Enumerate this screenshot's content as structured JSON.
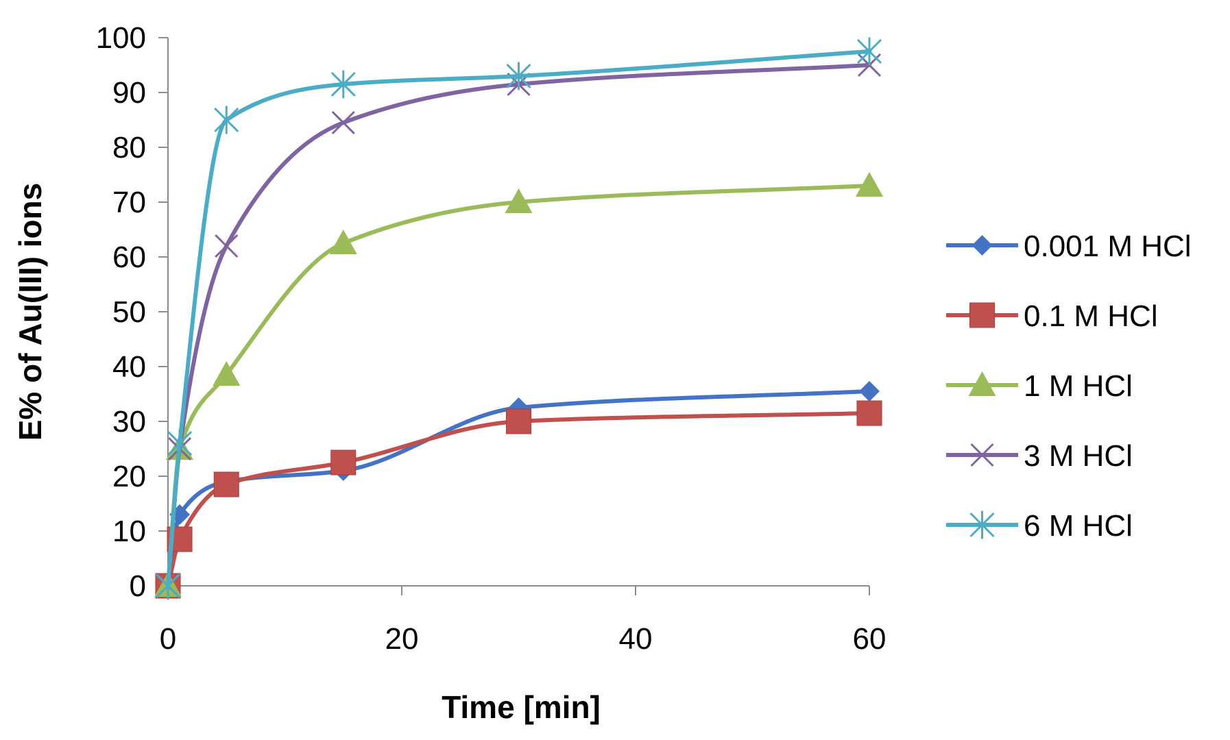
{
  "chart_data": {
    "type": "line",
    "title": "",
    "xlabel": "Time [min]",
    "ylabel": "E% of Au(III) ions",
    "xlim": [
      0,
      60
    ],
    "ylim": [
      0,
      100
    ],
    "x_ticks": [
      0,
      20,
      40,
      60
    ],
    "y_ticks": [
      0,
      10,
      20,
      30,
      40,
      50,
      60,
      70,
      80,
      90,
      100
    ],
    "grid": false,
    "smooth": true,
    "legend_position": "right",
    "series": [
      {
        "name": "0.001 M HCl",
        "color": "#4472C4",
        "marker": "diamond",
        "points": [
          [
            0,
            0
          ],
          [
            1,
            13
          ],
          [
            5,
            19
          ],
          [
            15,
            21
          ],
          [
            30,
            32.5
          ],
          [
            60,
            35.5
          ]
        ]
      },
      {
        "name": "0.1 M HCl",
        "color": "#C0504D",
        "marker": "square",
        "points": [
          [
            0,
            0
          ],
          [
            1,
            8.5
          ],
          [
            5,
            18.5
          ],
          [
            15,
            22.5
          ],
          [
            30,
            30
          ],
          [
            60,
            31.5
          ]
        ]
      },
      {
        "name": "1 M HCl",
        "color": "#9BBB59",
        "marker": "triangle",
        "points": [
          [
            0,
            0
          ],
          [
            1,
            25
          ],
          [
            5,
            38.5
          ],
          [
            15,
            62.5
          ],
          [
            30,
            70
          ],
          [
            60,
            73
          ]
        ]
      },
      {
        "name": "3 M HCl",
        "color": "#8064A2",
        "marker": "x",
        "points": [
          [
            0,
            0
          ],
          [
            1,
            25
          ],
          [
            5,
            62
          ],
          [
            15,
            84.5
          ],
          [
            30,
            91.5
          ],
          [
            60,
            95
          ]
        ]
      },
      {
        "name": "6 M HCl",
        "color": "#4BACC6",
        "marker": "star",
        "points": [
          [
            0,
            0
          ],
          [
            1,
            26
          ],
          [
            5,
            85
          ],
          [
            15,
            91.5
          ],
          [
            30,
            93
          ],
          [
            60,
            97.5
          ]
        ]
      }
    ]
  }
}
